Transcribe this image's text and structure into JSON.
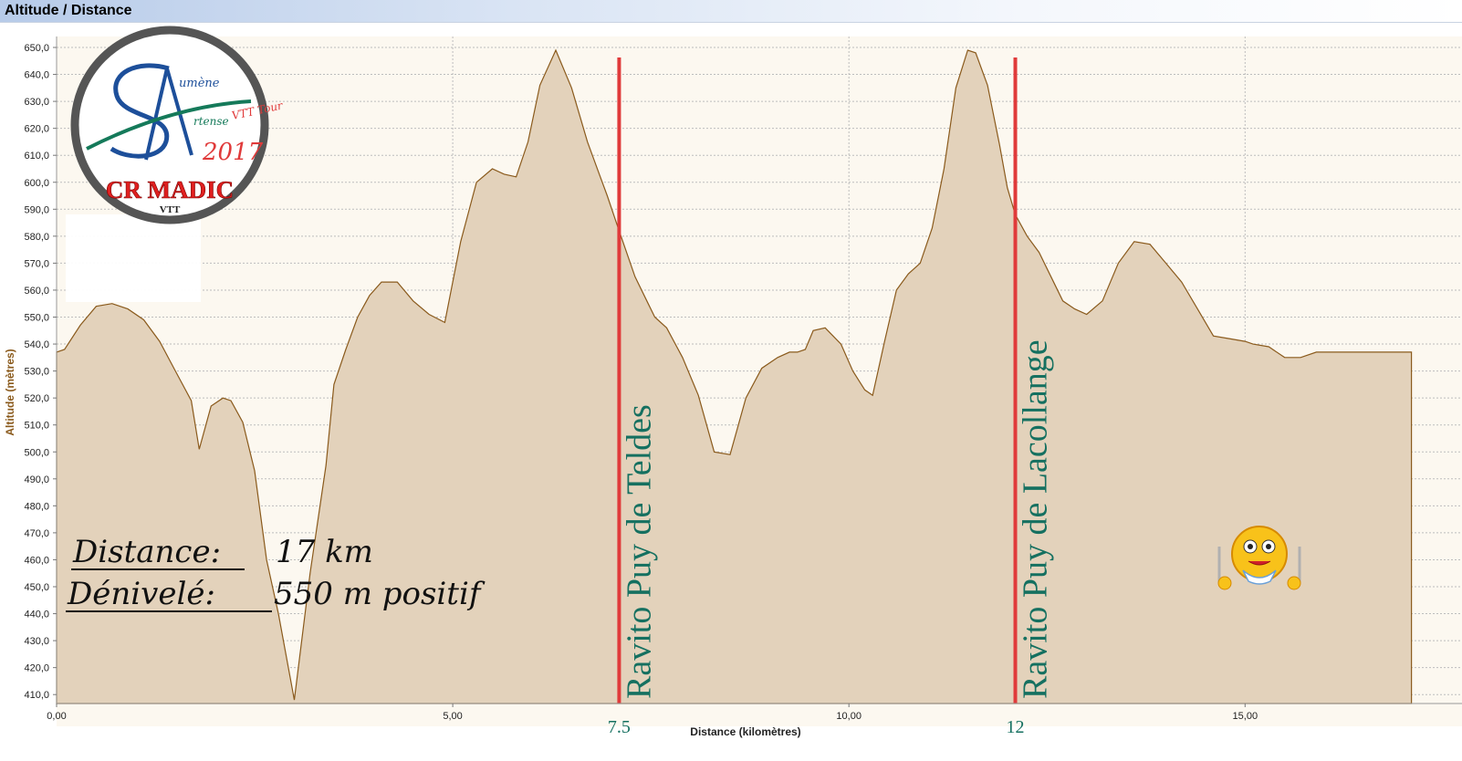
{
  "window": {
    "title": "Altitude / Distance"
  },
  "chart_data": {
    "type": "area",
    "xlabel": "Distance (kilomètres)",
    "ylabel": "Altitude (mètres)",
    "xlim": [
      0,
      17.2
    ],
    "ylim": [
      405,
      655
    ],
    "x_ticks": [
      {
        "value": 0,
        "label": "0,00"
      },
      {
        "value": 5,
        "label": "5,00"
      },
      {
        "value": 10,
        "label": "10,00"
      },
      {
        "value": 15,
        "label": "15,00"
      }
    ],
    "y_ticks": [
      {
        "value": 650,
        "label": "650,0"
      },
      {
        "value": 640,
        "label": "640,0"
      },
      {
        "value": 630,
        "label": "630,0"
      },
      {
        "value": 620,
        "label": "620,0"
      },
      {
        "value": 610,
        "label": "610,0"
      },
      {
        "value": 600,
        "label": "600,0"
      },
      {
        "value": 590,
        "label": "590,0"
      },
      {
        "value": 580,
        "label": "580,0"
      },
      {
        "value": 570,
        "label": "570,0"
      },
      {
        "value": 560,
        "label": "560,0"
      },
      {
        "value": 550,
        "label": "550,0"
      },
      {
        "value": 540,
        "label": "540,0"
      },
      {
        "value": 530,
        "label": "530,0"
      },
      {
        "value": 520,
        "label": "520,0"
      },
      {
        "value": 510,
        "label": "510,0"
      },
      {
        "value": 500,
        "label": "500,0"
      },
      {
        "value": 490,
        "label": "490,0"
      },
      {
        "value": 480,
        "label": "480,0"
      },
      {
        "value": 470,
        "label": "470,0"
      },
      {
        "value": 460,
        "label": "460,0"
      },
      {
        "value": 450,
        "label": "450,0"
      },
      {
        "value": 440,
        "label": "440,0"
      },
      {
        "value": 430,
        "label": "430,0"
      },
      {
        "value": 420,
        "label": "420,0"
      },
      {
        "value": 410,
        "label": "410,0"
      }
    ],
    "grid": true,
    "series": [
      {
        "x": [
          0,
          0.1,
          0.3,
          0.5,
          0.7,
          0.9,
          1.1,
          1.3,
          1.5,
          1.7,
          1.8,
          1.95,
          2.1,
          2.2,
          2.35,
          2.5,
          2.65,
          2.8,
          3.0,
          3.2,
          3.4,
          3.5,
          3.65,
          3.8,
          3.95,
          4.1,
          4.3,
          4.5,
          4.7,
          4.9,
          5.1,
          5.3,
          5.5,
          5.65,
          5.8,
          5.95,
          6.1,
          6.3,
          6.5,
          6.7,
          6.85,
          6.95,
          7.1,
          7.3,
          7.45,
          7.55,
          7.7,
          7.9,
          8.1,
          8.3,
          8.5,
          8.7,
          8.9,
          9.1,
          9.25,
          9.35,
          9.45,
          9.55,
          9.7,
          9.9,
          10.05,
          10.2,
          10.3,
          10.45,
          10.6,
          10.75,
          10.9,
          11.05,
          11.2,
          11.35,
          11.5,
          11.6,
          11.75,
          11.9,
          12.0,
          12.1,
          12.25,
          12.4,
          12.55,
          12.7,
          12.85,
          13.0,
          13.2,
          13.4,
          13.6,
          13.8,
          14.0,
          14.2,
          14.4,
          14.6,
          14.8,
          15.0,
          15.1,
          15.3,
          15.5,
          15.7,
          15.9,
          16.1,
          16.3,
          16.5,
          16.6,
          16.8,
          17.0,
          17.1
        ],
        "y": [
          537,
          538,
          547,
          554,
          555,
          553,
          549,
          541,
          530,
          519,
          501,
          517,
          520,
          519,
          511,
          493,
          460,
          440,
          408,
          455,
          495,
          525,
          538,
          550,
          558,
          563,
          563,
          556,
          551,
          548,
          578,
          600,
          605,
          603,
          602,
          615,
          636,
          649,
          635,
          615,
          603,
          595,
          582,
          565,
          556,
          550,
          546,
          535,
          521,
          500,
          499,
          520,
          531,
          535,
          537,
          537,
          538,
          545,
          546,
          540,
          530,
          523,
          521,
          541,
          560,
          566,
          570,
          583,
          605,
          635,
          649,
          648,
          636,
          614,
          598,
          588,
          580,
          574,
          565,
          556,
          553,
          551,
          556,
          570,
          578,
          577,
          570,
          563,
          553,
          543,
          542,
          541,
          540,
          539,
          535,
          535,
          537,
          537,
          537,
          537,
          537,
          537,
          537,
          537
        ]
      }
    ],
    "annotations": [
      {
        "x": 7.1,
        "label": "Ravito  Puy de Teldes",
        "axis_label": "7.5"
      },
      {
        "x": 12.1,
        "label": "Ravito  Puy de Lacollange",
        "axis_label": "12"
      }
    ],
    "colors": {
      "area": "#e3d2bb",
      "outline": "#8a5a1c",
      "marker_line": "#e03a3a",
      "label": "#157060",
      "axis_title": "#8a5a1c"
    }
  },
  "stats": {
    "distance_label": "Distance:",
    "distance_value": "17 km",
    "elevation_label": "Dénivelé:",
    "elevation_value": "550 m positif"
  },
  "logo": {
    "year": "2017",
    "club": "CR MADIC",
    "sub": "VTT",
    "word1": "umène",
    "word2": "rtense",
    "word3": "VTT Tour"
  }
}
